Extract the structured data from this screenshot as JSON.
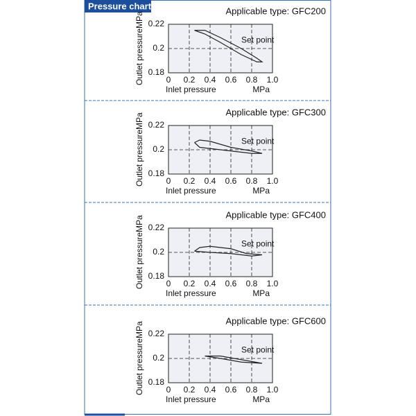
{
  "header": {
    "title": "Pressure chart"
  },
  "chart_data": [
    {
      "type": "line",
      "title": "Applicable type: GFC200",
      "y_label": "Outlet pressure",
      "y_unit": "MPa",
      "x_label": "Inlet pressure",
      "x_unit": "MPa",
      "annotation": "Set point",
      "x": [
        0.25,
        0.35,
        0.5,
        0.7,
        0.85,
        0.9,
        0.85,
        0.7,
        0.5,
        0.35,
        0.25
      ],
      "values": [
        0.215,
        0.215,
        0.209,
        0.2,
        0.192,
        0.189,
        0.189,
        0.195,
        0.205,
        0.212,
        0.215
      ],
      "color": "#222222",
      "xlim": [
        0,
        1
      ],
      "xticks": [
        0,
        0.2,
        0.4,
        0.6,
        0.8,
        {
          "value": 1,
          "label": "1.0"
        }
      ],
      "ylim": [
        0.18,
        0.22
      ],
      "yticks": [
        0.18,
        0.2,
        0.22
      ],
      "grid": true
    },
    {
      "type": "line",
      "title": "Applicable type: GFC300",
      "y_label": "Outlet pressure",
      "y_unit": "MPa",
      "x_label": "Inlet pressure",
      "x_unit": "MPa",
      "annotation": "Set point",
      "x": [
        0.25,
        0.3,
        0.4,
        0.6,
        0.8,
        0.9,
        0.8,
        0.6,
        0.4,
        0.3,
        0.25
      ],
      "values": [
        0.206,
        0.208,
        0.207,
        0.202,
        0.199,
        0.197,
        0.197,
        0.199,
        0.201,
        0.202,
        0.206
      ],
      "color": "#222222",
      "xlim": [
        0,
        1
      ],
      "xticks": [
        0,
        0.2,
        0.4,
        0.6,
        0.8,
        {
          "value": 1,
          "label": "1.0"
        }
      ],
      "ylim": [
        0.18,
        0.22
      ],
      "yticks": [
        0.18,
        0.2,
        0.22
      ],
      "grid": true
    },
    {
      "type": "line",
      "title": "Applicable type: GFC400",
      "y_label": "Outlet pressure",
      "y_unit": "MPa",
      "x_label": "Inlet pressure",
      "x_unit": "MPa",
      "annotation": "Set point",
      "x": [
        0.25,
        0.3,
        0.4,
        0.6,
        0.75,
        0.9,
        0.8,
        0.6,
        0.4,
        0.25
      ],
      "values": [
        0.201,
        0.204,
        0.205,
        0.203,
        0.199,
        0.198,
        0.197,
        0.199,
        0.2,
        0.201
      ],
      "color": "#222222",
      "xlim": [
        0,
        1
      ],
      "xticks": [
        0,
        0.2,
        0.4,
        0.6,
        0.8,
        {
          "value": 1,
          "label": "1.0"
        }
      ],
      "ylim": [
        0.18,
        0.22
      ],
      "yticks": [
        0.18,
        0.2,
        0.22
      ],
      "grid": true
    },
    {
      "type": "line",
      "title": "Applicable type: GFC600",
      "y_label": "Outlet pressure",
      "y_unit": "MPa",
      "x_label": "Inlet pressure",
      "x_unit": "MPa",
      "annotation": "Set point",
      "x": [
        0.35,
        0.5,
        0.7,
        0.9,
        0.7,
        0.5,
        0.35
      ],
      "values": [
        0.202,
        0.202,
        0.199,
        0.196,
        0.197,
        0.2,
        0.202
      ],
      "color": "#222222",
      "xlim": [
        0,
        1
      ],
      "xticks": [
        0,
        0.2,
        0.4,
        0.6,
        0.8,
        {
          "value": 1,
          "label": "1.0"
        }
      ],
      "ylim": [
        0.18,
        0.22
      ],
      "yticks": [
        0.18,
        0.2,
        0.22
      ],
      "grid": true
    }
  ]
}
